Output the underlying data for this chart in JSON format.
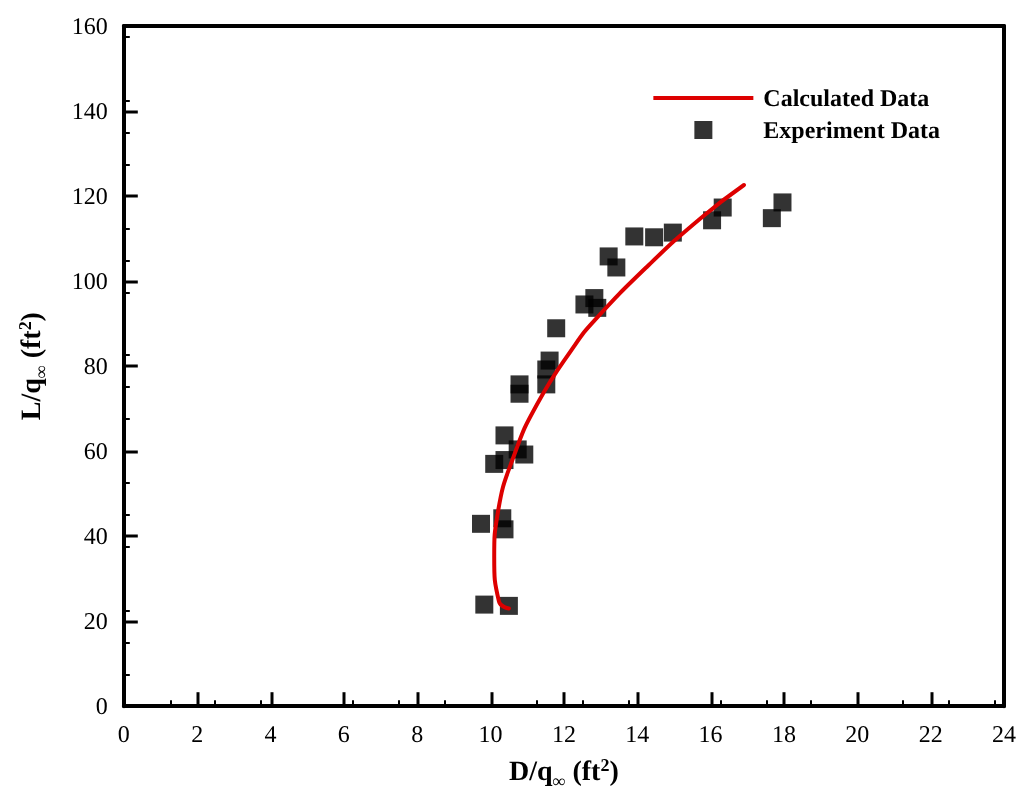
{
  "chart_data": {
    "type": "scatter",
    "xlabel": "D/q$_{∞}$ (ft$^{2}$)",
    "ylabel": "L/q$_{∞}$ (ft$^{2}$)",
    "xlim": [
      0,
      24
    ],
    "xticks": [
      0,
      2,
      4,
      6,
      8,
      10,
      12,
      14,
      16,
      18,
      20,
      22,
      24
    ],
    "ylim": [
      0,
      160
    ],
    "yticks": [
      0,
      20,
      40,
      60,
      80,
      100,
      120,
      140,
      160
    ],
    "legend": "top right",
    "grid": false,
    "series": [
      {
        "name": "Calculated Data",
        "type": "line",
        "color": "#dd0000",
        "marker": "none",
        "line_style": "solid",
        "x": [
          10.5,
          10.23,
          10.1,
          10.2,
          10.65,
          11.28,
          12.28,
          12.83,
          14.28,
          15.73,
          16.91
        ],
        "values": [
          23,
          24.6,
          35.1,
          45.6,
          59.2,
          71.2,
          84.7,
          90.7,
          103.5,
          114.8,
          122.6
        ]
      },
      {
        "name": "Experiment Data",
        "color": "#000000",
        "marker": "square",
        "x": [
          9.83,
          10.5,
          9.74,
          10.32,
          10.38,
          10.1,
          10.38,
          10.38,
          10.74,
          10.92,
          10.79,
          10.79,
          11.52,
          11.61,
          11.52,
          11.79,
          12.56,
          12.83,
          12.91,
          13.22,
          13.43,
          13.92,
          14.46,
          14.97,
          16.04,
          16.33,
          17.67,
          17.96
        ],
        "values": [
          23.9,
          23.6,
          42.9,
          44.2,
          41.6,
          57.0,
          57.9,
          63.7,
          60.4,
          59.2,
          75.7,
          73.5,
          75.7,
          81.3,
          79.2,
          88.9,
          94.5,
          96.0,
          93.7,
          105.8,
          103.2,
          110.5,
          110.3,
          111.4,
          114.3,
          117.3,
          114.8,
          118.5
        ]
      }
    ]
  }
}
